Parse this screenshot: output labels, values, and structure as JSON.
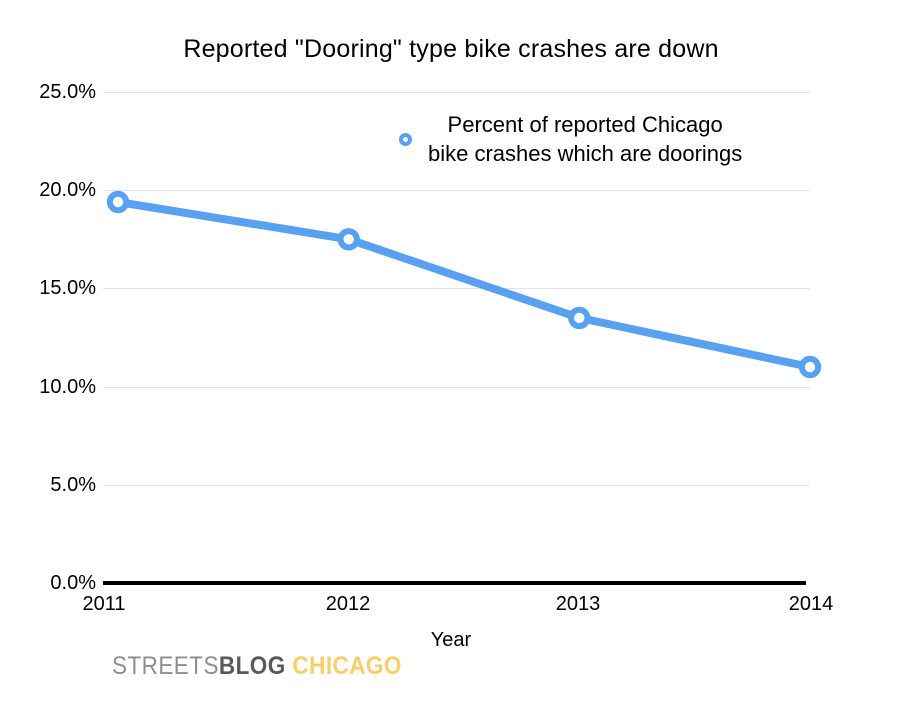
{
  "chart_data": {
    "type": "line",
    "title": "Reported \"Dooring\" type bike crashes are down",
    "categories": [
      "2011",
      "2012",
      "2013",
      "2014"
    ],
    "series": [
      {
        "name": "Percent of reported Chicago bike crashes which are doorings",
        "values": [
          19.4,
          17.5,
          13.5,
          11.0
        ],
        "color": "#57a1f0",
        "marker": "open-circle"
      }
    ],
    "xlabel": "Year",
    "ylabel": "",
    "ylim": [
      0,
      25
    ],
    "yticks": [
      "25.0%",
      "20.0%",
      "15.0%",
      "10.0%",
      "5.0%",
      "0.0%"
    ],
    "grid": "horizontal",
    "gridline_color": "#e2e2e2",
    "axis_color": "#000000",
    "legend_position": "top-center"
  },
  "legend": {
    "line1": "Percent of reported Chicago",
    "line2": "bike crashes which are doorings"
  },
  "footer": {
    "logo": {
      "part1": "STREETS",
      "part2": "BLOG",
      "part3": " CHICAGO",
      "color1": "#8e8e8e",
      "color2": "#59595b",
      "color3": "#f8ce68"
    }
  }
}
